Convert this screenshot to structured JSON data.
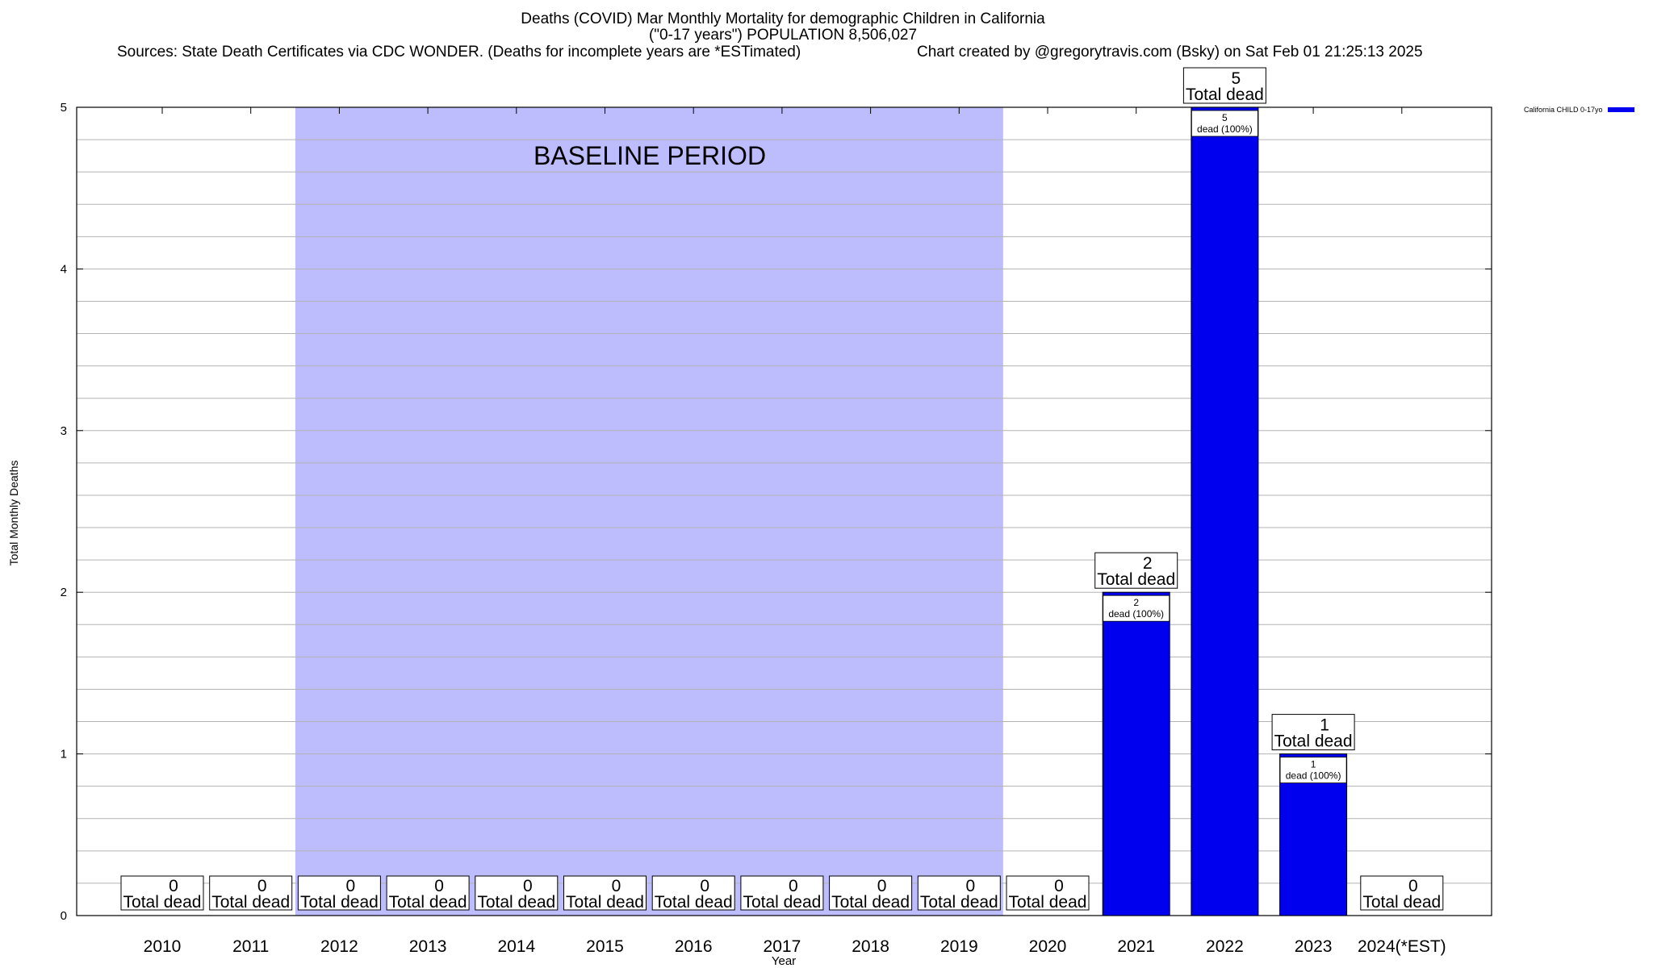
{
  "chart_data": {
    "type": "bar",
    "title": "Deaths (COVID) Mar Monthly Mortality for demographic Children in California",
    "subtitle": "(\"0-17 years\") POPULATION 8,506,027",
    "sources": "Sources: State Death Certificates via CDC WONDER. (Deaths for incomplete years are *ESTimated)",
    "credit": "Chart created by @gregorytravis.com (Bsky) on Sat Feb 01 21:25:13 2025",
    "xlabel": "Year",
    "ylabel": "Total Monthly Deaths",
    "ylim": [
      0,
      5
    ],
    "yticks": [
      "0",
      "1",
      "2",
      "3",
      "4",
      "5"
    ],
    "grid": true,
    "legend_position": "top-right",
    "categories": [
      "2010",
      "2011",
      "2012",
      "2013",
      "2014",
      "2015",
      "2016",
      "2017",
      "2018",
      "2019",
      "2020",
      "2021",
      "2022",
      "2023",
      "2024(*EST)"
    ],
    "series": [
      {
        "name": "California CHILD 0-17yo",
        "color": "#0000ee",
        "values": [
          0,
          0,
          0,
          0,
          0,
          0,
          0,
          0,
          0,
          0,
          0,
          2,
          5,
          1,
          0
        ]
      }
    ],
    "total_label_suffix": "Total dead",
    "bar_label_suffix": "dead (100%)",
    "bar_label_percent": "100%",
    "baseline_period": {
      "label": "BASELINE PERIOD",
      "from": "2012",
      "to": "2019",
      "color": "#bdbdfd"
    }
  }
}
